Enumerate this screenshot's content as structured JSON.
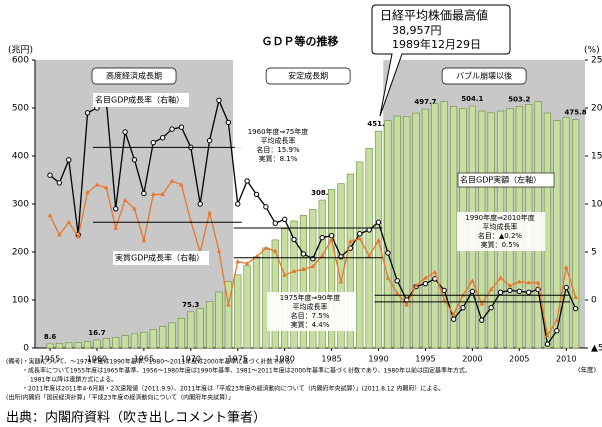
{
  "chart_data": {
    "type": "bar",
    "title": "ＧＤＰ等の推移",
    "y_label": "(兆円)",
    "y2_label": "(%)",
    "x_label": "(年度)",
    "x": [
      1955,
      1956,
      1957,
      1958,
      1959,
      1960,
      1961,
      1962,
      1963,
      1964,
      1965,
      1966,
      1967,
      1968,
      1969,
      1970,
      1971,
      1972,
      1973,
      1974,
      1975,
      1976,
      1977,
      1978,
      1979,
      1980,
      1981,
      1982,
      1983,
      1984,
      1985,
      1986,
      1987,
      1988,
      1989,
      1990,
      1991,
      1992,
      1993,
      1994,
      1995,
      1996,
      1997,
      1998,
      1999,
      2000,
      2001,
      2002,
      2003,
      2004,
      2005,
      2006,
      2007,
      2008,
      2009,
      2010,
      2011
    ],
    "xlim": [
      1953.4,
      2012
    ],
    "xticks": [
      1955,
      1960,
      1965,
      1970,
      1975,
      1980,
      1985,
      1990,
      1995,
      2000,
      2005,
      2010
    ],
    "ylim": [
      0,
      600
    ],
    "yticks": [
      0,
      100,
      200,
      300,
      400,
      500,
      600
    ],
    "y2lim": [
      -5,
      25
    ],
    "y2ticks": [
      {
        "value": -5,
        "label": "▲5"
      },
      0,
      5,
      10,
      15,
      20,
      25
    ],
    "series": [
      {
        "name": "名目GDP実額（左軸）",
        "type": "bar",
        "axis": "y",
        "color": "#c6dfa0",
        "values": [
          8.6,
          9.6,
          10.9,
          11.5,
          13.2,
          16.7,
          20.2,
          22.0,
          25.9,
          29.5,
          32.9,
          38.2,
          44.5,
          52.4,
          62.0,
          75.3,
          82.8,
          96.5,
          116.7,
          138.5,
          152.4,
          171.3,
          190.1,
          208.6,
          225.2,
          248.4,
          264.6,
          276.2,
          288.8,
          308.2,
          330.4,
          342.3,
          362.3,
          387.7,
          415.9,
          451.7,
          473.6,
          483.3,
          482.6,
          489.4,
          497.7,
          509.0,
          513.6,
          503.3,
          499.5,
          504.1,
          493.6,
          489.9,
          493.7,
          498.5,
          503.2,
          507.4,
          513.0,
          489.5,
          473.9,
          480.2,
          475.8
        ],
        "value_labels": [
          "8.6",
          null,
          null,
          null,
          null,
          "16.7",
          null,
          null,
          null,
          null,
          null,
          null,
          null,
          null,
          null,
          "75.3",
          null,
          null,
          null,
          null,
          null,
          null,
          null,
          null,
          null,
          null,
          null,
          null,
          null,
          "308.2",
          null,
          null,
          null,
          null,
          null,
          "451.7",
          null,
          null,
          null,
          null,
          "497.7",
          null,
          null,
          null,
          null,
          "504.1",
          null,
          null,
          null,
          null,
          "503.2",
          null,
          null,
          null,
          null,
          null,
          "475.8"
        ]
      },
      {
        "name": "名目GDP成長率（右軸）",
        "type": "line",
        "axis": "y2",
        "color": "#000000",
        "values": [
          13.0,
          12.2,
          14.6,
          6.8,
          19.5,
          20.0,
          20.7,
          9.5,
          17.5,
          14.6,
          11.1,
          16.4,
          16.9,
          17.8,
          18.0,
          15.9,
          10.0,
          16.6,
          20.8,
          18.5,
          10.0,
          12.4,
          11.0,
          9.7,
          8.0,
          8.4,
          6.3,
          4.8,
          4.3,
          6.5,
          6.7,
          4.5,
          5.4,
          6.9,
          7.3,
          8.1,
          4.9,
          2.0,
          0.0,
          1.4,
          1.7,
          2.2,
          1.0,
          -2.0,
          -0.8,
          0.9,
          -2.1,
          -0.8,
          0.8,
          1.0,
          0.9,
          0.8,
          1.1,
          -4.6,
          -3.2,
          1.3,
          -0.9
        ]
      },
      {
        "name": "実質GDP成長率（右軸）",
        "type": "line",
        "axis": "y2",
        "color": "#e8772e",
        "values": [
          8.8,
          6.8,
          8.1,
          6.6,
          11.2,
          12.0,
          11.7,
          7.5,
          10.4,
          9.5,
          6.2,
          11.0,
          11.0,
          12.4,
          12.0,
          8.2,
          5.0,
          9.1,
          5.1,
          -0.5,
          4.0,
          3.8,
          4.5,
          5.4,
          5.1,
          2.6,
          3.0,
          3.2,
          3.5,
          4.6,
          6.3,
          1.9,
          6.1,
          6.4,
          4.6,
          6.2,
          2.3,
          0.7,
          -0.5,
          1.5,
          2.3,
          2.9,
          0.0,
          -1.5,
          0.5,
          2.0,
          -0.4,
          1.1,
          2.3,
          1.5,
          1.9,
          1.8,
          1.8,
          -3.7,
          -2.1,
          3.4,
          0.3
        ]
      }
    ],
    "periods": [
      {
        "label": "高度経済成長期",
        "from": 1953.4,
        "to": 1974.5,
        "shaded": true
      },
      {
        "label": "安定成長期",
        "from": 1974.5,
        "to": 1990.5,
        "shaded": false
      },
      {
        "label": "バブル崩壊以後",
        "from": 1990.5,
        "to": 2012,
        "shaded": true
      }
    ],
    "averages": [
      {
        "from": 1960,
        "to": 1975,
        "nominal": 15.9,
        "real": 8.1,
        "lines": [
          "1960年度⇒75年度",
          "平均成長率",
          "名目：15.9%",
          "実質：8.1%"
        ]
      },
      {
        "from": 1975,
        "to": 1990,
        "nominal": 7.5,
        "real": 4.4,
        "lines": [
          "1975年度⇒90年度",
          "平均成長率",
          "名目：7.5%",
          "実質：4.4%"
        ]
      },
      {
        "from": 1990,
        "to": 2010,
        "nominal": -0.2,
        "real": 0.5,
        "lines": [
          "1990年度⇒2010年度",
          "平均成長率",
          "名目：▲0.2%",
          "実質：0.5%"
        ]
      }
    ],
    "callout": [
      "日経平均株価最高値",
      "38,957円",
      "1989年12月29日"
    ],
    "notes": [
      "(備考)・実額について、～1979年度は1990年基準、1980～2011年度は2000年基準に基づく計数である。",
      "・成長率について1955年度は1965年基準、1956～1980年度は1990年基準、1981～2011年度は2000年基準に基づく計数であり、1980年以前は固定基準年方式、",
      "1981年以降は連鎖方式による。",
      "・2011年度は2011年4-6月期・2次速報値（2011.9.9）、2011年度は「平成23年度の経済動向について（内閣府年央試算）」(2011.8.12 内閣府）による。",
      "(出所)内閣府「国民経済計算」「平成23年度の経済動向について（内閣府年央試算）」"
    ]
  },
  "source": "出典：内閣府資料（吹き出しコメント筆者）"
}
